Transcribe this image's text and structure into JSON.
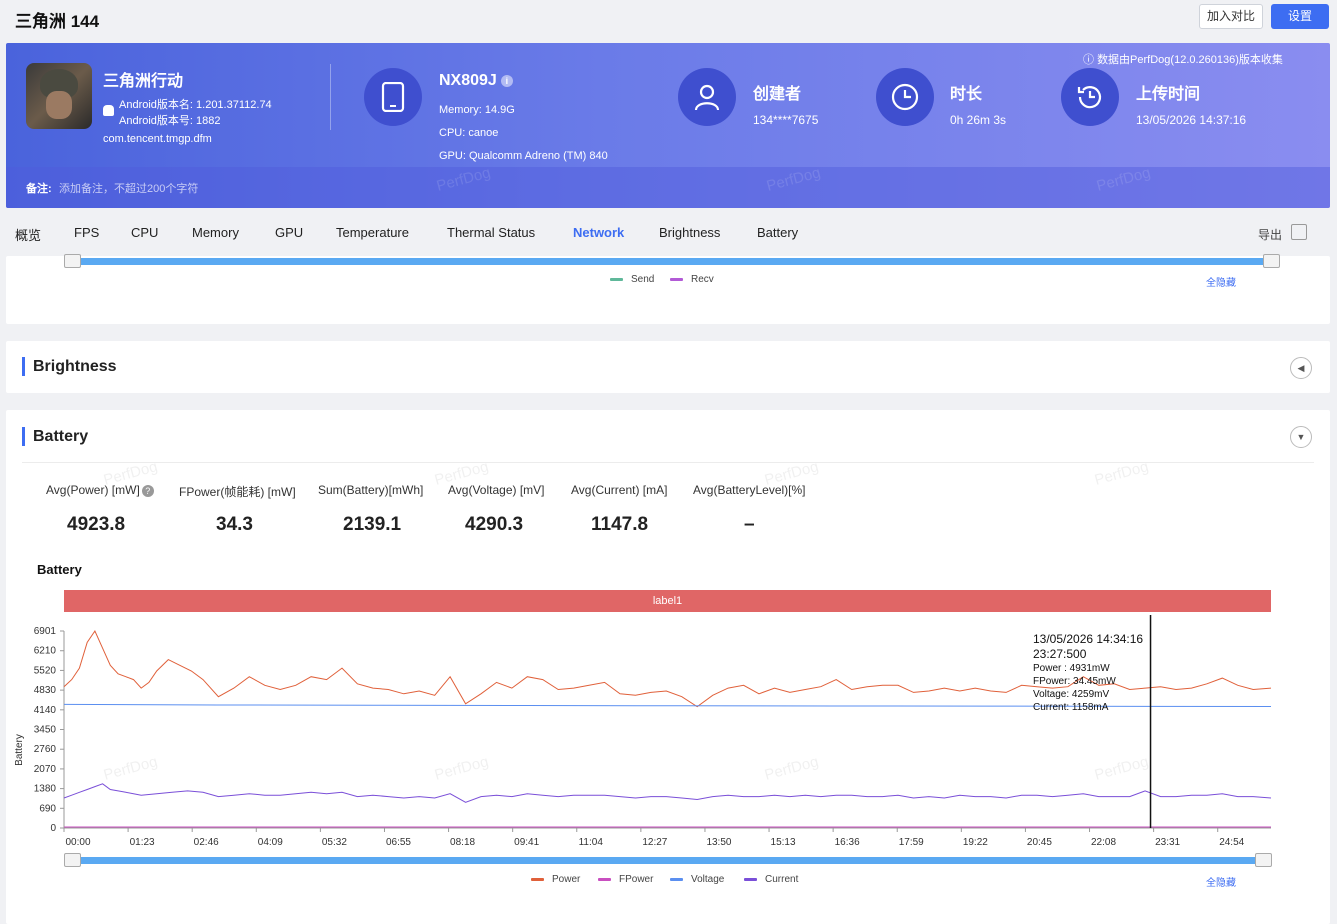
{
  "app": {
    "title": "三角洲 144",
    "compare_label": "加入对比",
    "settings_label": "设置"
  },
  "game": {
    "name": "三角洲行动",
    "version_name": "Android版本名: 1.201.37112.74",
    "version_code": "Android版本号: 1882",
    "package": "com.tencent.tmgp.dfm"
  },
  "device": {
    "name": "NX809J",
    "memory": "Memory: 14.9G",
    "cpu": "CPU: canoe",
    "gpu": "GPU: Qualcomm Adreno (TM) 840"
  },
  "creator": {
    "title": "创建者",
    "value": "134****7675"
  },
  "duration": {
    "title": "时长",
    "value": "0h 26m 3s"
  },
  "upload": {
    "title": "上传时间",
    "value": "13/05/2026 14:37:16"
  },
  "collect_note": "数据由PerfDog(12.0.260136)版本收集",
  "notes": {
    "label": "备注:",
    "placeholder": "添加备注，不超过200个字符"
  },
  "watermark": "PerfDog",
  "tabs": [
    "概览",
    "FPS",
    "CPU",
    "Memory",
    "GPU",
    "Temperature",
    "Thermal Status",
    "Network",
    "Brightness",
    "Battery"
  ],
  "active_tab": "Network",
  "export_label": "导出",
  "network_legend": [
    {
      "name": "Send",
      "color": "#5fb89a"
    },
    {
      "name": "Recv",
      "color": "#b25ad6"
    }
  ],
  "hide_all_label": "全隐藏",
  "sections": {
    "brightness": "Brightness",
    "battery": "Battery"
  },
  "battery_stats": [
    {
      "label": "Avg(Power) [mW]",
      "value": "4923.8",
      "help": true
    },
    {
      "label": "FPower(帧能耗) [mW]",
      "value": "34.3"
    },
    {
      "label": "Sum(Battery)[mWh]",
      "value": "2139.1"
    },
    {
      "label": "Avg(Voltage) [mV]",
      "value": "4290.3"
    },
    {
      "label": "Avg(Current) [mA]",
      "value": "1147.8"
    },
    {
      "label": "Avg(BatteryLevel)[%]",
      "value": "–"
    }
  ],
  "tooltip": {
    "timestamp": "13/05/2026 14:34:16",
    "time": "23:27:500",
    "power": "Power  : 4931mW",
    "fpower": "FPower: 34.45mW",
    "voltage": "Voltage: 4259mV",
    "current": "Current: 1158mA"
  },
  "chart_data": {
    "type": "line",
    "title": "Battery",
    "ylabel": "Battery",
    "band_label": "label1",
    "ylim": [
      0,
      6901
    ],
    "y_ticks": [
      0,
      690,
      1380,
      2070,
      2760,
      3450,
      4140,
      4830,
      5520,
      6210,
      6901
    ],
    "x_ticks": [
      "00:00",
      "01:23",
      "02:46",
      "04:09",
      "05:32",
      "06:55",
      "08:18",
      "09:41",
      "11:04",
      "12:27",
      "13:50",
      "15:13",
      "16:36",
      "17:59",
      "19:22",
      "20:45",
      "22:08",
      "23:31",
      "24:54"
    ],
    "x_tick_seconds": [
      0,
      83,
      166,
      249,
      332,
      415,
      498,
      581,
      664,
      747,
      830,
      913,
      996,
      1079,
      1162,
      1245,
      1328,
      1411,
      1494
    ],
    "x_max_seconds": 1563,
    "cursor_seconds": 1407,
    "grid": false,
    "legend_position": "bottom",
    "series": [
      {
        "name": "Power",
        "color": "#e0603a",
        "x": [
          0,
          10,
          20,
          30,
          40,
          50,
          60,
          70,
          80,
          90,
          100,
          110,
          120,
          135,
          150,
          165,
          180,
          200,
          220,
          240,
          260,
          280,
          300,
          320,
          340,
          360,
          380,
          400,
          420,
          440,
          460,
          480,
          500,
          520,
          540,
          560,
          580,
          600,
          620,
          640,
          660,
          680,
          700,
          720,
          740,
          760,
          780,
          800,
          820,
          840,
          860,
          880,
          900,
          920,
          940,
          960,
          980,
          1000,
          1020,
          1040,
          1060,
          1080,
          1100,
          1120,
          1140,
          1160,
          1180,
          1200,
          1220,
          1240,
          1260,
          1280,
          1300,
          1320,
          1340,
          1360,
          1380,
          1400,
          1420,
          1440,
          1460,
          1480,
          1500,
          1520,
          1540,
          1563
        ],
        "values": [
          4950,
          5200,
          5600,
          6500,
          6900,
          6300,
          5700,
          5400,
          5300,
          5200,
          4900,
          5100,
          5500,
          5900,
          5700,
          5500,
          5200,
          4600,
          4900,
          5300,
          5000,
          4850,
          5000,
          5300,
          5200,
          5600,
          5050,
          4900,
          4850,
          4700,
          4800,
          4650,
          5300,
          4350,
          4700,
          5100,
          4900,
          5300,
          5200,
          4850,
          4900,
          5000,
          5100,
          4700,
          4650,
          4750,
          4800,
          4600,
          4250,
          4650,
          4900,
          5000,
          4700,
          4900,
          4750,
          4850,
          4950,
          5200,
          4850,
          4950,
          5000,
          5000,
          4750,
          4800,
          4900,
          4800,
          4900,
          4800,
          4750,
          5000,
          4950,
          4900,
          4950,
          5300,
          5000,
          5050,
          4850,
          4900,
          4950,
          4850,
          4900,
          5050,
          5250,
          5000,
          4850,
          4900
        ]
      },
      {
        "name": "FPower",
        "color": "#c94fc0",
        "x": [
          0,
          1563
        ],
        "values": [
          34,
          34
        ]
      },
      {
        "name": "Voltage",
        "color": "#5b8ff0",
        "x": [
          0,
          200,
          400,
          600,
          800,
          1000,
          1200,
          1400,
          1563
        ],
        "values": [
          4330,
          4310,
          4300,
          4290,
          4280,
          4275,
          4270,
          4260,
          4255
        ]
      },
      {
        "name": "Current",
        "color": "#7a4fd8",
        "x": [
          0,
          10,
          20,
          30,
          40,
          50,
          60,
          70,
          80,
          90,
          100,
          120,
          140,
          160,
          180,
          200,
          220,
          240,
          260,
          280,
          300,
          320,
          340,
          360,
          380,
          400,
          420,
          440,
          460,
          480,
          500,
          520,
          540,
          560,
          580,
          600,
          620,
          640,
          660,
          680,
          700,
          720,
          740,
          760,
          780,
          800,
          820,
          840,
          860,
          880,
          900,
          920,
          940,
          960,
          980,
          1000,
          1020,
          1040,
          1060,
          1080,
          1100,
          1120,
          1140,
          1160,
          1180,
          1200,
          1220,
          1240,
          1260,
          1280,
          1300,
          1320,
          1340,
          1360,
          1380,
          1400,
          1420,
          1440,
          1460,
          1480,
          1500,
          1520,
          1540,
          1563
        ],
        "values": [
          1050,
          1150,
          1250,
          1350,
          1450,
          1550,
          1350,
          1300,
          1250,
          1200,
          1150,
          1200,
          1250,
          1300,
          1250,
          1100,
          1150,
          1200,
          1150,
          1150,
          1200,
          1250,
          1200,
          1250,
          1100,
          1150,
          1100,
          1050,
          1100,
          1050,
          1200,
          900,
          1100,
          1150,
          1100,
          1200,
          1150,
          1100,
          1150,
          1150,
          1150,
          1100,
          1050,
          1100,
          1100,
          1050,
          1000,
          1100,
          1150,
          1100,
          1100,
          1150,
          1100,
          1150,
          1100,
          1150,
          1150,
          1100,
          1100,
          1150,
          1050,
          1100,
          1050,
          1150,
          1100,
          1100,
          1050,
          1150,
          1150,
          1100,
          1150,
          1200,
          1100,
          1100,
          1100,
          1300,
          1100,
          1100,
          1150,
          1150,
          1200,
          1100,
          1100,
          1050
        ]
      }
    ]
  }
}
